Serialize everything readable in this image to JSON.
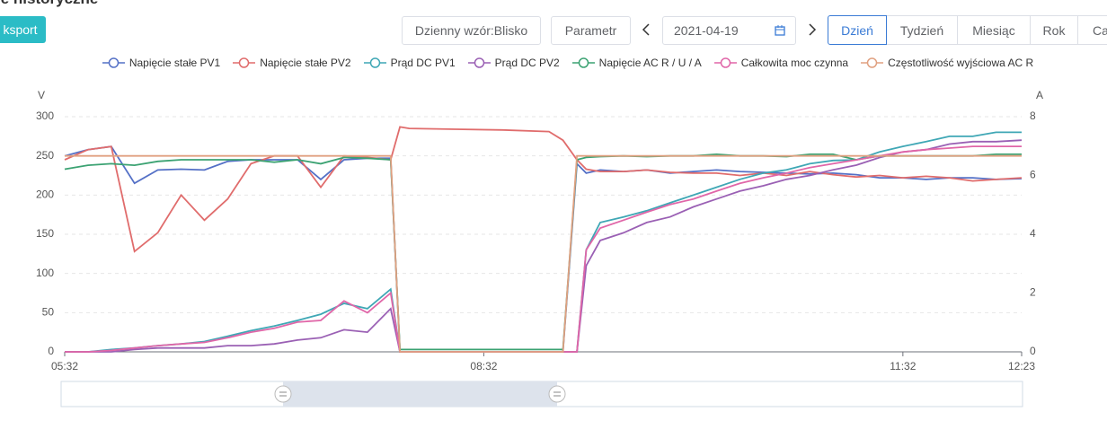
{
  "header": {
    "title": "ie historyczne",
    "export_button": "ksport"
  },
  "toolbar": {
    "pattern_button": "Dzienny wzór:Blisko",
    "param_button": "Parametr",
    "date": "2021-04-19",
    "tabs": [
      "Dzień",
      "Tydzień",
      "Miesiąc",
      "Rok",
      "Ca"
    ]
  },
  "chart_data": {
    "type": "line",
    "x": [
      "05:32",
      "05:42",
      "05:52",
      "06:02",
      "06:12",
      "06:22",
      "06:32",
      "06:42",
      "06:52",
      "07:02",
      "07:12",
      "07:22",
      "07:32",
      "07:42",
      "07:52",
      "07:56",
      "08:00",
      "08:20",
      "08:40",
      "09:00",
      "09:06",
      "09:12",
      "09:16",
      "09:22",
      "09:32",
      "09:42",
      "09:52",
      "10:02",
      "10:12",
      "10:22",
      "10:32",
      "10:42",
      "10:52",
      "11:02",
      "11:12",
      "11:22",
      "11:32",
      "11:42",
      "11:52",
      "12:02",
      "12:12",
      "12:23"
    ],
    "xlim": [
      "05:32",
      "12:23"
    ],
    "xticks": [
      "05:32",
      "08:32",
      "11:32",
      "12:23"
    ],
    "ylabel": "V",
    "y2label": "A",
    "ylim": [
      0,
      300
    ],
    "yticks": [
      0,
      50,
      100,
      150,
      200,
      250,
      300
    ],
    "y2lim": [
      0,
      8
    ],
    "y2ticks": [
      0,
      2,
      4,
      6,
      8
    ],
    "grid": true,
    "series": [
      {
        "name": "Napięcie stałe PV1",
        "color": "#5470c6",
        "values": [
          250,
          258,
          262,
          215,
          232,
          233,
          232,
          243,
          245,
          245,
          245,
          220,
          245,
          247,
          247,
          0,
          0,
          0,
          0,
          0,
          0,
          240,
          228,
          232,
          230,
          232,
          228,
          230,
          232,
          230,
          229,
          228,
          227,
          228,
          226,
          222,
          222,
          220,
          222,
          222,
          220,
          221
        ]
      },
      {
        "name": "Napięcie stałe PV2",
        "color": "#e06c6c",
        "values": [
          245,
          258,
          262,
          128,
          152,
          200,
          168,
          195,
          240,
          250,
          250,
          210,
          250,
          248,
          245,
          287,
          285,
          284,
          283,
          281,
          270,
          245,
          233,
          230,
          230,
          232,
          229,
          228,
          228,
          225,
          228,
          225,
          230,
          226,
          223,
          225,
          222,
          224,
          222,
          218,
          220,
          222
        ]
      },
      {
        "name": "Prąd DC PV1",
        "color": "#3fa7b5",
        "axis": "y2",
        "values": [
          0,
          0,
          0.08,
          0.13,
          0.21,
          0.27,
          0.35,
          0.53,
          0.72,
          0.88,
          1.07,
          1.28,
          1.65,
          1.47,
          2.13,
          0,
          0,
          0,
          0,
          0,
          0,
          0,
          3.47,
          4.4,
          4.59,
          4.8,
          5.07,
          5.33,
          5.6,
          5.87,
          6.08,
          6.19,
          6.4,
          6.51,
          6.53,
          6.8,
          6.99,
          7.15,
          7.33,
          7.33,
          7.47,
          7.47
        ]
      },
      {
        "name": "Prąd DC PV2",
        "color": "#9a60b4",
        "axis": "y2",
        "values": [
          0,
          0,
          0,
          0.08,
          0.13,
          0.13,
          0.13,
          0.21,
          0.21,
          0.27,
          0.4,
          0.48,
          0.75,
          0.67,
          1.47,
          0,
          0,
          0,
          0,
          0,
          0,
          0,
          2.93,
          3.79,
          4.05,
          4.4,
          4.59,
          4.93,
          5.2,
          5.47,
          5.65,
          5.87,
          6,
          6.19,
          6.35,
          6.61,
          6.8,
          6.88,
          7.07,
          7.15,
          7.15,
          7.2
        ]
      },
      {
        "name": "Napięcie AC R / U / A",
        "color": "#3ba272",
        "values": [
          233,
          238,
          240,
          238,
          243,
          245,
          245,
          245,
          245,
          242,
          245,
          240,
          248,
          247,
          245,
          3,
          3,
          3,
          3,
          3,
          3,
          245,
          248,
          249,
          250,
          249,
          250,
          250,
          252,
          250,
          250,
          249,
          252,
          252,
          245,
          250,
          250,
          250,
          250,
          250,
          252,
          252
        ]
      },
      {
        "name": "Całkowita moc czynna",
        "color": "#e066a8",
        "axis": "y2",
        "values": [
          0,
          0,
          0.05,
          0.13,
          0.21,
          0.27,
          0.32,
          0.48,
          0.67,
          0.8,
          1.01,
          1.07,
          1.73,
          1.33,
          2,
          0,
          0,
          0,
          0,
          0,
          0,
          0,
          3.47,
          4.21,
          4.48,
          4.75,
          5.01,
          5.2,
          5.47,
          5.73,
          5.92,
          6.08,
          6.27,
          6.4,
          6.53,
          6.67,
          6.8,
          6.88,
          6.93,
          6.99,
          6.99,
          6.99
        ]
      },
      {
        "name": "Częstotliwość wyjściowa AC R",
        "color": "#e0a080",
        "values": [
          250,
          250,
          250,
          250,
          250,
          250,
          250,
          250,
          250,
          250,
          250,
          250,
          250,
          250,
          250,
          0,
          0,
          0,
          0,
          0,
          0,
          250,
          250,
          250,
          250,
          250,
          250,
          250,
          250,
          250,
          250,
          250,
          250,
          250,
          250,
          250,
          250,
          250,
          250,
          250,
          250,
          250
        ]
      }
    ]
  }
}
